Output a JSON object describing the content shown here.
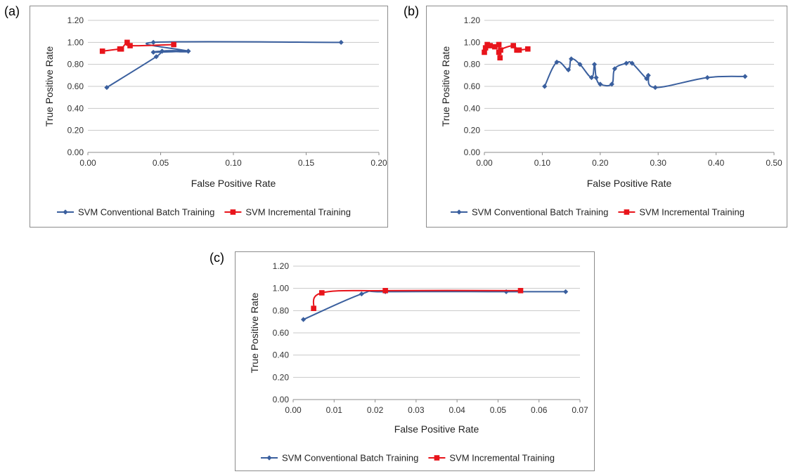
{
  "panels": [
    {
      "label": "(a)",
      "chart_data": {
        "type": "line",
        "xlabel": "False Positive Rate",
        "ylabel": "True Positive Rate",
        "xlim": [
          0,
          0.2
        ],
        "ylim": [
          0,
          1.2
        ],
        "xticks": [
          "0.00",
          "0.05",
          "0.10",
          "0.15",
          "0.20"
        ],
        "yticks": [
          "0.00",
          "0.20",
          "0.40",
          "0.60",
          "0.80",
          "1.00",
          "1.20"
        ],
        "series": [
          {
            "name": "SVM Conventional Batch Training",
            "color": "#3a5f9e",
            "marker": "diamond",
            "points": [
              [
                0.013,
                0.59
              ],
              [
                0.047,
                0.87
              ],
              [
                0.051,
                0.92
              ],
              [
                0.069,
                0.92
              ],
              [
                0.045,
                0.91
              ],
              [
                0.051,
                0.92
              ],
              [
                0.069,
                0.92
              ],
              [
                0.045,
                1.0
              ],
              [
                0.174,
                1.0
              ]
            ]
          },
          {
            "name": "SVM Incremental Training",
            "color": "#e8141b",
            "marker": "square",
            "points": [
              [
                0.01,
                0.92
              ],
              [
                0.022,
                0.94
              ],
              [
                0.023,
                0.94
              ],
              [
                0.027,
                1.0
              ],
              [
                0.029,
                0.97
              ],
              [
                0.059,
                0.98
              ]
            ]
          }
        ]
      }
    },
    {
      "label": "(b)",
      "chart_data": {
        "type": "line",
        "xlabel": "False Positive Rate",
        "ylabel": "True Positive Rate",
        "xlim": [
          0,
          0.5
        ],
        "ylim": [
          0,
          1.2
        ],
        "xticks": [
          "0.00",
          "0.10",
          "0.20",
          "0.30",
          "0.40",
          "0.50"
        ],
        "yticks": [
          "0.00",
          "0.20",
          "0.40",
          "0.60",
          "0.80",
          "1.00",
          "1.20"
        ],
        "series": [
          {
            "name": "SVM Conventional Batch Training",
            "color": "#3a5f9e",
            "marker": "diamond",
            "points": [
              [
                0.104,
                0.6
              ],
              [
                0.125,
                0.82
              ],
              [
                0.145,
                0.75
              ],
              [
                0.15,
                0.85
              ],
              [
                0.165,
                0.8
              ],
              [
                0.185,
                0.68
              ],
              [
                0.19,
                0.8
              ],
              [
                0.193,
                0.68
              ],
              [
                0.2,
                0.62
              ],
              [
                0.22,
                0.62
              ],
              [
                0.225,
                0.76
              ],
              [
                0.245,
                0.81
              ],
              [
                0.255,
                0.81
              ],
              [
                0.28,
                0.67
              ],
              [
                0.283,
                0.7
              ],
              [
                0.295,
                0.59
              ],
              [
                0.385,
                0.68
              ],
              [
                0.45,
                0.69
              ]
            ]
          },
          {
            "name": "SVM Incremental Training",
            "color": "#e8141b",
            "marker": "square",
            "points": [
              [
                0.0,
                0.91
              ],
              [
                0.002,
                0.95
              ],
              [
                0.005,
                0.98
              ],
              [
                0.01,
                0.97
              ],
              [
                0.018,
                0.96
              ],
              [
                0.025,
                0.98
              ],
              [
                0.025,
                0.91
              ],
              [
                0.027,
                0.86
              ],
              [
                0.028,
                0.93
              ],
              [
                0.05,
                0.97
              ],
              [
                0.056,
                0.93
              ],
              [
                0.06,
                0.93
              ],
              [
                0.075,
                0.94
              ]
            ]
          }
        ]
      }
    },
    {
      "label": "(c)",
      "chart_data": {
        "type": "line",
        "xlabel": "False Positive Rate",
        "ylabel": "True Positive Rate",
        "xlim": [
          0,
          0.07
        ],
        "ylim": [
          0,
          1.2
        ],
        "xticks": [
          "0.00",
          "0.01",
          "0.02",
          "0.03",
          "0.04",
          "0.05",
          "0.06",
          "0.07"
        ],
        "yticks": [
          "0.00",
          "0.20",
          "0.40",
          "0.60",
          "0.80",
          "1.00",
          "1.20"
        ],
        "series": [
          {
            "name": "SVM Conventional Batch Training",
            "color": "#3a5f9e",
            "marker": "diamond",
            "points": [
              [
                0.0025,
                0.72
              ],
              [
                0.0167,
                0.95
              ],
              [
                0.0225,
                0.97
              ],
              [
                0.052,
                0.97
              ],
              [
                0.0665,
                0.97
              ]
            ]
          },
          {
            "name": "SVM Incremental Training",
            "color": "#e8141b",
            "marker": "square",
            "points": [
              [
                0.005,
                0.82
              ],
              [
                0.007,
                0.96
              ],
              [
                0.0225,
                0.98
              ],
              [
                0.0555,
                0.98
              ]
            ]
          }
        ]
      }
    }
  ]
}
